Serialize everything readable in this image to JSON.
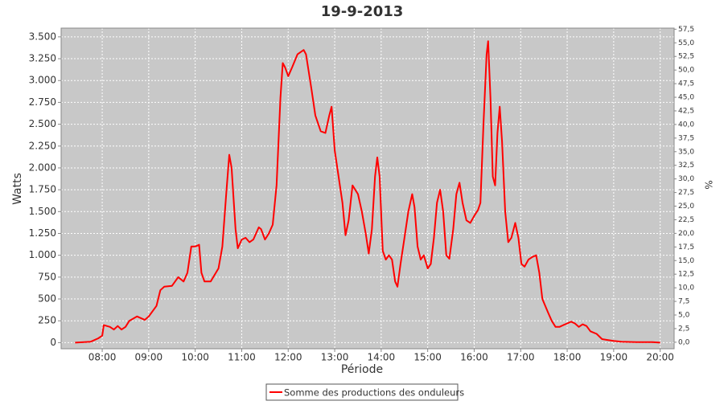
{
  "chart_data": {
    "type": "line",
    "title": "19-9-2013",
    "xlabel": "Période",
    "ylabel": "Watts",
    "y2label": "%",
    "legend": "bottom",
    "grid": true,
    "xlim": [
      "07:07",
      "20:18"
    ],
    "xticks": [
      "08:00",
      "09:00",
      "10:00",
      "11:00",
      "12:00",
      "13:00",
      "14:00",
      "15:00",
      "16:00",
      "17:00",
      "18:00",
      "19:00",
      "20:00"
    ],
    "ylim": [
      -70,
      3600
    ],
    "yticks": [
      0,
      250,
      500,
      750,
      {
        "value": 1000,
        "label": "1.000"
      },
      {
        "value": 1250,
        "label": "1.250"
      },
      {
        "value": 1500,
        "label": "1.500"
      },
      {
        "value": 1750,
        "label": "1.750"
      },
      {
        "value": 2000,
        "label": "2.000"
      },
      {
        "value": 2250,
        "label": "2.250"
      },
      {
        "value": 2500,
        "label": "2.500"
      },
      {
        "value": 2750,
        "label": "2.750"
      },
      {
        "value": 3000,
        "label": "3.000"
      },
      {
        "value": 3250,
        "label": "3.250"
      },
      {
        "value": 3500,
        "label": "3.500"
      }
    ],
    "y2lim": [
      -1.2,
      57.7
    ],
    "y2ticks": [
      {
        "value": 0,
        "label": "0,0"
      },
      {
        "value": 2.5,
        "label": "2,5"
      },
      {
        "value": 5,
        "label": "5,0"
      },
      {
        "value": 7.5,
        "label": "7,5"
      },
      {
        "value": 10,
        "label": "10,0"
      },
      {
        "value": 12.5,
        "label": "12,5"
      },
      {
        "value": 15,
        "label": "15,0"
      },
      {
        "value": 17.5,
        "label": "17,5"
      },
      {
        "value": 20,
        "label": "20,0"
      },
      {
        "value": 22.5,
        "label": "22,5"
      },
      {
        "value": 25,
        "label": "25,0"
      },
      {
        "value": 27.5,
        "label": "27,5"
      },
      {
        "value": 30,
        "label": "30,0"
      },
      {
        "value": 32.5,
        "label": "32,5"
      },
      {
        "value": 35,
        "label": "35,0"
      },
      {
        "value": 37.5,
        "label": "37,5"
      },
      {
        "value": 40,
        "label": "40,0"
      },
      {
        "value": 42.5,
        "label": "42,5"
      },
      {
        "value": 45,
        "label": "45,0"
      },
      {
        "value": 47.5,
        "label": "47,5"
      },
      {
        "value": 50,
        "label": "50,0"
      },
      {
        "value": 52.5,
        "label": "52,5"
      },
      {
        "value": 55,
        "label": "55,0"
      },
      {
        "value": 57.5,
        "label": "57,5"
      }
    ],
    "series": [
      {
        "name": "Somme des productions des onduleurs",
        "color": "#ff0000",
        "x": [
          "07:25",
          "07:45",
          "07:55",
          "08:00",
          "08:02",
          "08:10",
          "08:15",
          "08:20",
          "08:25",
          "08:30",
          "08:35",
          "08:45",
          "08:55",
          "09:00",
          "09:10",
          "09:15",
          "09:20",
          "09:30",
          "09:38",
          "09:45",
          "09:50",
          "09:55",
          "10:00",
          "10:05",
          "10:08",
          "10:12",
          "10:20",
          "10:30",
          "10:35",
          "10:40",
          "10:44",
          "10:47",
          "10:52",
          "10:55",
          "11:00",
          "11:05",
          "11:10",
          "11:15",
          "11:22",
          "11:25",
          "11:30",
          "11:35",
          "11:40",
          "11:45",
          "11:50",
          "11:53",
          "11:56",
          "12:00",
          "12:05",
          "12:12",
          "12:20",
          "12:23",
          "12:30",
          "12:35",
          "12:42",
          "12:48",
          "12:53",
          "12:56",
          "13:00",
          "13:05",
          "13:10",
          "13:14",
          "13:18",
          "13:23",
          "13:30",
          "13:35",
          "13:40",
          "13:44",
          "13:48",
          "13:52",
          "13:55",
          "13:58",
          "14:02",
          "14:06",
          "14:10",
          "14:14",
          "14:18",
          "14:21",
          "14:25",
          "14:30",
          "14:35",
          "14:40",
          "14:43",
          "14:47",
          "14:51",
          "14:55",
          "15:00",
          "15:04",
          "15:08",
          "15:12",
          "15:16",
          "15:20",
          "15:24",
          "15:28",
          "15:33",
          "15:37",
          "15:41",
          "15:45",
          "15:50",
          "15:55",
          "16:00",
          "16:05",
          "16:08",
          "16:12",
          "16:16",
          "16:18",
          "16:21",
          "16:24",
          "16:27",
          "16:30",
          "16:33",
          "16:36",
          "16:40",
          "16:44",
          "16:48",
          "16:53",
          "16:57",
          "17:01",
          "17:05",
          "17:10",
          "17:15",
          "17:20",
          "17:24",
          "17:28",
          "17:35",
          "17:40",
          "17:45",
          "17:50",
          "17:55",
          "18:00",
          "18:05",
          "18:10",
          "18:15",
          "18:20",
          "18:25",
          "18:30",
          "18:38",
          "18:45",
          "18:52",
          "19:00",
          "19:10",
          "19:30",
          "19:50",
          "20:00"
        ],
        "values": [
          0,
          10,
          50,
          80,
          200,
          180,
          150,
          190,
          150,
          180,
          250,
          300,
          260,
          300,
          420,
          600,
          640,
          650,
          750,
          700,
          800,
          1100,
          1100,
          1120,
          800,
          700,
          700,
          850,
          1100,
          1700,
          2150,
          2000,
          1300,
          1080,
          1180,
          1200,
          1150,
          1180,
          1320,
          1300,
          1180,
          1250,
          1350,
          1800,
          2800,
          3200,
          3150,
          3050,
          3150,
          3300,
          3350,
          3300,
          2900,
          2600,
          2420,
          2400,
          2600,
          2700,
          2200,
          1900,
          1600,
          1230,
          1400,
          1800,
          1700,
          1500,
          1250,
          1020,
          1300,
          1900,
          2120,
          1900,
          1050,
          950,
          1000,
          950,
          700,
          640,
          900,
          1200,
          1500,
          1700,
          1550,
          1100,
          950,
          1000,
          850,
          900,
          1200,
          1600,
          1750,
          1500,
          1000,
          960,
          1300,
          1700,
          1830,
          1600,
          1400,
          1370,
          1450,
          1520,
          1600,
          2500,
          3300,
          3450,
          2800,
          1900,
          1800,
          2400,
          2700,
          2300,
          1500,
          1150,
          1200,
          1370,
          1200,
          900,
          870,
          950,
          980,
          1000,
          800,
          500,
          350,
          250,
          180,
          180,
          200,
          220,
          240,
          220,
          180,
          210,
          190,
          130,
          100,
          40,
          30,
          20,
          10,
          5,
          5,
          0
        ]
      }
    ]
  }
}
